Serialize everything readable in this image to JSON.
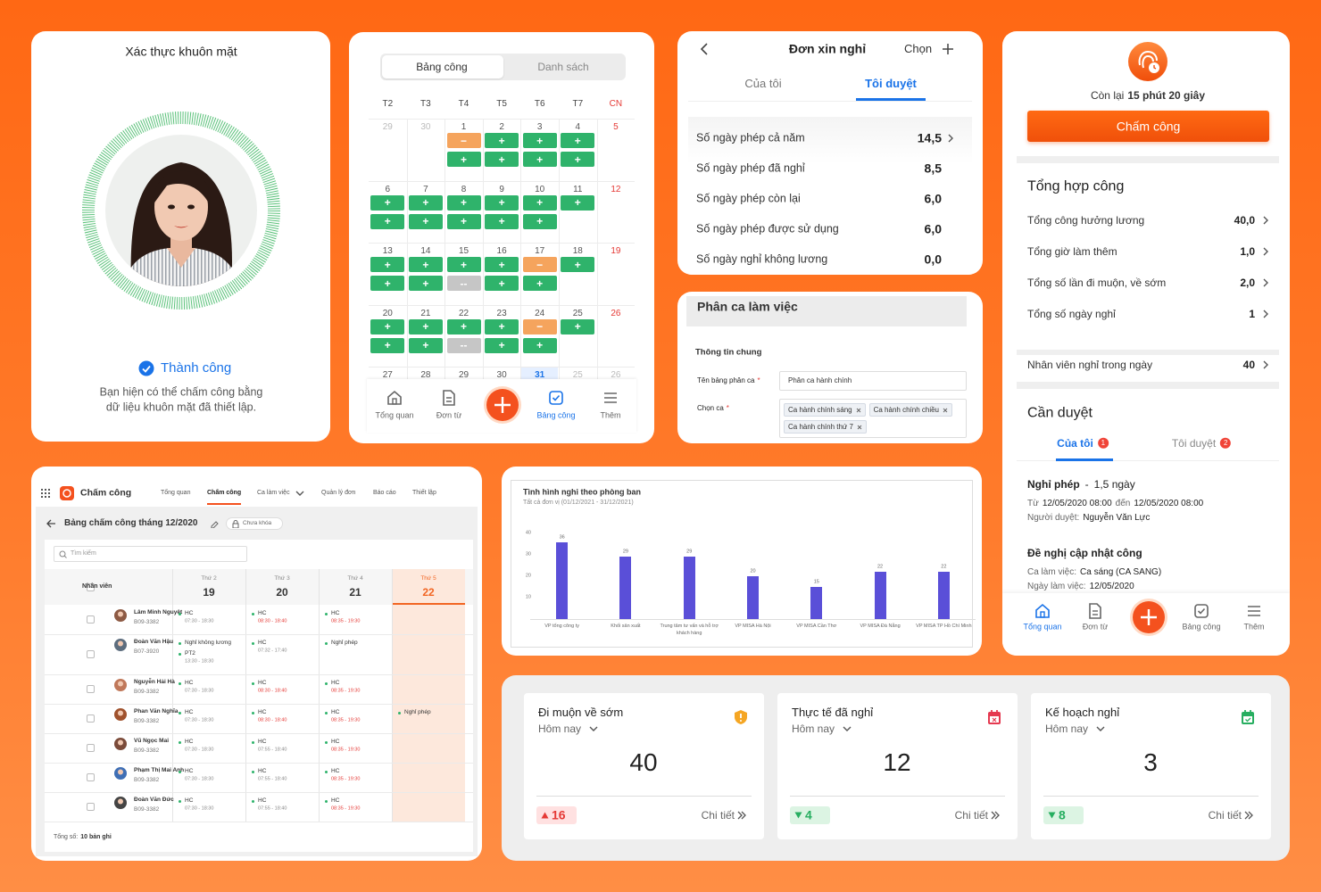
{
  "face": {
    "title": "Xác thực khuôn mặt",
    "status": "Thành công",
    "message": [
      "Bạn hiện có thể chấm công bằng",
      "dữ liệu khuôn mặt đã thiết lập."
    ]
  },
  "calendar": {
    "tabs": [
      "Bảng công",
      "Danh sách"
    ],
    "weekdays": [
      "T2",
      "T3",
      "T4",
      "T5",
      "T6",
      "T7",
      "CN"
    ],
    "weeks": [
      [
        {
          "day": 29,
          "muted": true
        },
        {
          "day": 30,
          "muted": true
        },
        {
          "day": 1,
          "slots": [
            "−",
            "+"
          ]
        },
        {
          "day": 2,
          "slots": [
            "+",
            "+"
          ]
        },
        {
          "day": 3,
          "slots": [
            "+",
            "+"
          ]
        },
        {
          "day": 4,
          "slots": [
            "+",
            "+"
          ]
        },
        {
          "day": 5
        }
      ],
      [
        {
          "day": 6,
          "slots": [
            "+",
            "+"
          ]
        },
        {
          "day": 7,
          "slots": [
            "+",
            "+"
          ]
        },
        {
          "day": 8,
          "slots": [
            "+",
            "+"
          ]
        },
        {
          "day": 9,
          "slots": [
            "+",
            "+"
          ]
        },
        {
          "day": 10,
          "slots": [
            "+",
            "+"
          ]
        },
        {
          "day": 11,
          "slots": [
            "+"
          ]
        },
        {
          "day": 12
        }
      ],
      [
        {
          "day": 13,
          "slots": [
            "+",
            "+"
          ]
        },
        {
          "day": 14,
          "slots": [
            "+",
            "+"
          ]
        },
        {
          "day": 15,
          "slots": [
            "+",
            "--"
          ]
        },
        {
          "day": 16,
          "slots": [
            "+",
            "+"
          ]
        },
        {
          "day": 17,
          "slots": [
            "−",
            "+"
          ]
        },
        {
          "day": 18,
          "slots": [
            "+"
          ]
        },
        {
          "day": 19
        }
      ],
      [
        {
          "day": 20,
          "slots": [
            "+",
            "+"
          ]
        },
        {
          "day": 21,
          "slots": [
            "+",
            "+"
          ]
        },
        {
          "day": 22,
          "slots": [
            "+",
            "--"
          ]
        },
        {
          "day": 23,
          "slots": [
            "+",
            "+"
          ]
        },
        {
          "day": 24,
          "slots": [
            "−",
            "+"
          ]
        },
        {
          "day": 25,
          "slots": [
            "+"
          ]
        },
        {
          "day": 26
        }
      ],
      [
        {
          "day": 27
        },
        {
          "day": 28
        },
        {
          "day": 29
        },
        {
          "day": 30
        },
        {
          "day": 31,
          "today": true
        },
        {
          "day": 25,
          "muted": true
        },
        {
          "day": 26,
          "muted": true
        }
      ]
    ],
    "nav": [
      "Tổng quan",
      "Đơn từ",
      "Bảng công",
      "Thêm"
    ],
    "active_nav": 2
  },
  "leave": {
    "title": "Đơn xin nghỉ",
    "action": "Chọn",
    "tabs": [
      "Của tôi",
      "Tôi duyệt"
    ],
    "active_tab": 1,
    "rows": [
      {
        "label": "Số ngày phép cả năm",
        "value": "14,5"
      },
      {
        "label": "Số ngày phép đã nghỉ",
        "value": "8,5"
      },
      {
        "label": "Số ngày phép còn lại",
        "value": "6,0"
      },
      {
        "label": "Số ngày phép được sử dụng",
        "value": "6,0"
      },
      {
        "label": "Số ngày nghỉ không lương",
        "value": "0,0"
      }
    ]
  },
  "shift": {
    "title": "Phân ca làm việc",
    "section": "Thông tin chung",
    "fields": [
      {
        "label": "Tên bảng phân ca",
        "required": "*",
        "value": "Phân ca hành chính"
      },
      {
        "label": "Chọn ca",
        "required": "*",
        "tags": [
          "Ca hành chính sáng",
          "Ca hành chính chiều",
          "Ca hành chính thứ 7"
        ]
      }
    ]
  },
  "overview": {
    "remaining_label": "Còn lại",
    "remaining": "15 phút 20 giây",
    "button": "Chấm công",
    "summary_title": "Tổng hợp công",
    "summary": [
      {
        "label": "Tổng công hưởng lương",
        "value": "40,0"
      },
      {
        "label": "Tổng giờ làm thêm",
        "value": "1,0"
      },
      {
        "label": "Tổng số lần đi muộn, về sớm",
        "value": "2,0"
      },
      {
        "label": "Tổng số ngày nghỉ",
        "value": "1"
      }
    ],
    "absent": {
      "label": "Nhân viên nghỉ trong ngày",
      "value": "40"
    },
    "approval_title": "Cần duyệt",
    "tabs": [
      {
        "label": "Của tôi",
        "badge": "1"
      },
      {
        "label": "Tôi duyệt",
        "badge": "2"
      }
    ],
    "active_tab": 0,
    "requests": [
      {
        "title": "Nghỉ phép",
        "separator": "-",
        "detail": "1,5 ngày",
        "lines": [
          [
            "Từ",
            "12/05/2020 08:00",
            "đến",
            "12/05/2020 08:00"
          ],
          [
            "Người duyệt:",
            "Nguyễn Văn Lực"
          ]
        ]
      },
      {
        "title": "Đề nghị cập nhật công",
        "lines": [
          [
            "Ca làm việc:",
            "Ca sáng (CA SANG)"
          ],
          [
            "Ngày làm việc:",
            "12/05/2020"
          ]
        ]
      }
    ],
    "nav": [
      "Tổng quan",
      "Đơn từ",
      "Bảng công",
      "Thêm"
    ],
    "active_nav": 0
  },
  "timesheet": {
    "app": "Chấm công",
    "menu": [
      "Tổng quan",
      "Chấm công",
      "Ca làm việc",
      "Quản lý đơn",
      "Báo cáo",
      "Thiết lập"
    ],
    "active_menu": 1,
    "title": "Bảng chấm công tháng 12/2020",
    "lock": "Chưa khóa",
    "search": "Tìm kiếm",
    "employee_header": "Nhân viên",
    "days": [
      {
        "dow": "Thứ 2",
        "day": 19
      },
      {
        "dow": "Thứ 3",
        "day": 20
      },
      {
        "dow": "Thứ 4",
        "day": 21
      },
      {
        "dow": "Thứ 5",
        "day": 22
      }
    ],
    "highlight_day": 3,
    "rows": [
      {
        "name": "Lâm Minh Nguyệt",
        "code": "B09-3382",
        "cells": [
          [
            {
              "label": "HC",
              "time": "07:30 - 18:30"
            }
          ],
          [
            {
              "label": "HC",
              "time": "08:30 - 18:40",
              "late": true
            }
          ],
          [
            {
              "label": "HC",
              "time": "08:35 - 19:30",
              "late": true
            }
          ],
          []
        ]
      },
      {
        "name": "Đoàn Văn Hậu",
        "code": "B07-3920",
        "cells": [
          [
            {
              "label": "Nghỉ không lương"
            },
            {
              "label": "PT2",
              "time": "13:30 - 18:30"
            }
          ],
          [
            {
              "label": "HC",
              "time": "07:32 - 17:40"
            }
          ],
          [
            {
              "label": "Nghỉ phép"
            }
          ],
          []
        ]
      },
      {
        "name": "Nguyễn Hải Hà",
        "code": "B09-3382",
        "cells": [
          [
            {
              "label": "HC",
              "time": "07:30 - 18:30"
            }
          ],
          [
            {
              "label": "HC",
              "time": "08:30 - 18:40",
              "late": true
            }
          ],
          [
            {
              "label": "HC",
              "time": "08:35 - 19:30",
              "late": true
            }
          ],
          []
        ]
      },
      {
        "name": "Phan Văn Nghĩa",
        "code": "B09-3382",
        "cells": [
          [
            {
              "label": "HC",
              "time": "07:30 - 18:30"
            }
          ],
          [
            {
              "label": "HC",
              "time": "08:30 - 18:40",
              "late": true
            }
          ],
          [
            {
              "label": "HC",
              "time": "08:35 - 19:30",
              "late": true
            }
          ],
          [
            {
              "label": "Nghỉ phép"
            }
          ]
        ]
      },
      {
        "name": "Vũ Ngọc Mai",
        "code": "B09-3382",
        "cells": [
          [
            {
              "label": "HC",
              "time": "07:30 - 18:30"
            }
          ],
          [
            {
              "label": "HC",
              "time": "07:55 - 18:40"
            }
          ],
          [
            {
              "label": "HC",
              "time": "08:35 - 19:30",
              "late": true
            }
          ],
          []
        ]
      },
      {
        "name": "Phạm Thị Mai Anh",
        "code": "B09-3382",
        "cells": [
          [
            {
              "label": "HC",
              "time": "07:30 - 18:30"
            }
          ],
          [
            {
              "label": "HC",
              "time": "07:55 - 18:40"
            }
          ],
          [
            {
              "label": "HC",
              "time": "08:35 - 19:30",
              "late": true
            }
          ],
          []
        ]
      },
      {
        "name": "Đoàn Văn Đức",
        "code": "B09-3382",
        "cells": [
          [
            {
              "label": "HC",
              "time": "07:30 - 18:30"
            }
          ],
          [
            {
              "label": "HC",
              "time": "07:55 - 18:40"
            }
          ],
          [
            {
              "label": "HC",
              "time": "08:35 - 19:30",
              "late": true
            }
          ],
          []
        ]
      }
    ],
    "total_label": "Tổng số:",
    "total": "10 bản ghi"
  },
  "chart_data": {
    "type": "bar",
    "title": "Tình hình nghỉ theo phòng ban",
    "subtitle": "Tất cả đơn vị (01/12/2021 - 31/12/2021)",
    "categories": [
      "VP tổng công ty",
      "Khối sản xuất",
      "Trung tâm tư vấn và hỗ trợ khách hàng",
      "VP MISA Hà Nội",
      "VP MISA Cần Thơ",
      "VP MISA Đà Nẵng",
      "VP MISA TP Hồ Chí Minh"
    ],
    "values": [
      36,
      29,
      29,
      20,
      15,
      22,
      22
    ],
    "color": "#5a4fd8",
    "ylim": [
      0,
      40
    ],
    "yticks": [
      10,
      20,
      30,
      40
    ]
  },
  "stats": [
    {
      "title": "Đi muộn về sớm",
      "period": "Hôm nay",
      "value": 40,
      "change": 16,
      "trend": "up",
      "link": "Chi tiết",
      "icon_color": "#f5a623"
    },
    {
      "title": "Thực tế đã nghỉ",
      "period": "Hôm nay",
      "value": 12,
      "change": 4,
      "trend": "down",
      "link": "Chi tiết",
      "icon_color": "#e53950"
    },
    {
      "title": "Kế hoạch nghỉ",
      "period": "Hôm nay",
      "value": 3,
      "change": 8,
      "trend": "down",
      "link": "Chi tiết",
      "icon_color": "#27ae60"
    }
  ]
}
